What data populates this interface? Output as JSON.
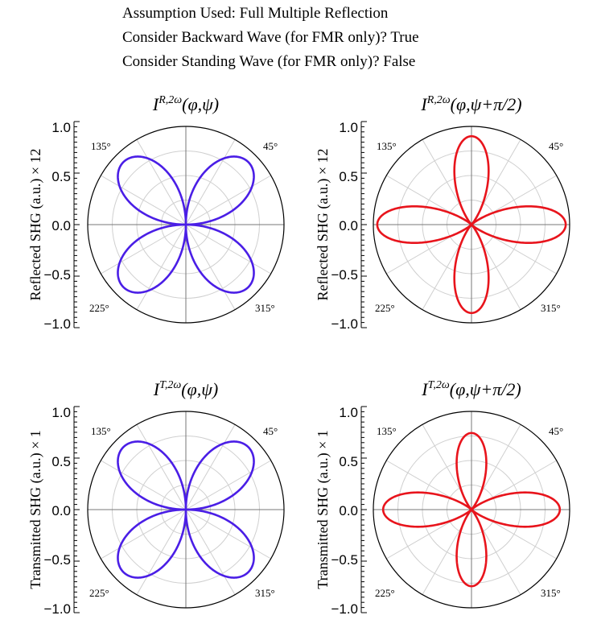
{
  "header": {
    "lines": [
      "Assumption Used: Full Multiple Reflection",
      "Consider Backward Wave (for FMR only)? True",
      "Consider Standing Wave (for FMR only)? False"
    ]
  },
  "chart_data": [
    {
      "type": "polar",
      "title": "I^{R,2ω}(φ,ψ)",
      "ylabel": "Reflected SHG (a.u.) × 12",
      "yticks": [
        "1.0",
        "0.5",
        "0.0",
        "−0.5",
        "−1.0"
      ],
      "ylim": [
        -1.0,
        1.0
      ],
      "angle_labels": [
        "45°",
        "135°",
        "225°",
        "315°"
      ],
      "series": [
        {
          "color": "#4a1ee6",
          "formula": "|sin(2θ)|",
          "lobes_at_deg": [
            45,
            135,
            225,
            315
          ],
          "peak": 0.9
        }
      ]
    },
    {
      "type": "polar",
      "title": "I^{R,2ω}(φ,ψ+π/2)",
      "ylabel": "Reflected SHG (a.u.) × 12",
      "yticks": [
        "1.0",
        "0.5",
        "0.0",
        "−0.5",
        "−1.0"
      ],
      "ylim": [
        -1.0,
        1.0
      ],
      "angle_labels": [
        "45°",
        "135°",
        "225°",
        "315°"
      ],
      "series": [
        {
          "color": "#e8141c",
          "formula": "|cos(2θ)|^n",
          "lobes_at_deg": [
            0,
            90,
            180,
            270
          ],
          "lobe_lengths": [
            0.96,
            0.9,
            0.96,
            0.9
          ]
        }
      ]
    },
    {
      "type": "polar",
      "title": "I^{T,2ω}(φ,ψ)",
      "ylabel": "Transmitted SHG (a.u.) × 1",
      "yticks": [
        "1.0",
        "0.5",
        "0.0",
        "−0.5",
        "−1.0"
      ],
      "ylim": [
        -1.0,
        1.0
      ],
      "angle_labels": [
        "45°",
        "135°",
        "225°",
        "315°"
      ],
      "series": [
        {
          "color": "#4a1ee6",
          "formula": "|sin(2θ)|",
          "lobes_at_deg": [
            45,
            135,
            225,
            315
          ],
          "peak": 0.9
        }
      ]
    },
    {
      "type": "polar",
      "title": "I^{T,2ω}(φ,ψ+π/2)",
      "ylabel": "Transmitted SHG (a.u.) × 1",
      "yticks": [
        "1.0",
        "0.5",
        "0.0",
        "−0.5",
        "−1.0"
      ],
      "ylim": [
        -1.0,
        1.0
      ],
      "angle_labels": [
        "45°",
        "135°",
        "225°",
        "315°"
      ],
      "series": [
        {
          "color": "#e8141c",
          "formula": "|cos(2θ)|^n",
          "lobes_at_deg": [
            0,
            90,
            180,
            270
          ],
          "lobe_lengths": [
            0.9,
            0.78,
            0.9,
            0.78
          ]
        }
      ]
    }
  ]
}
